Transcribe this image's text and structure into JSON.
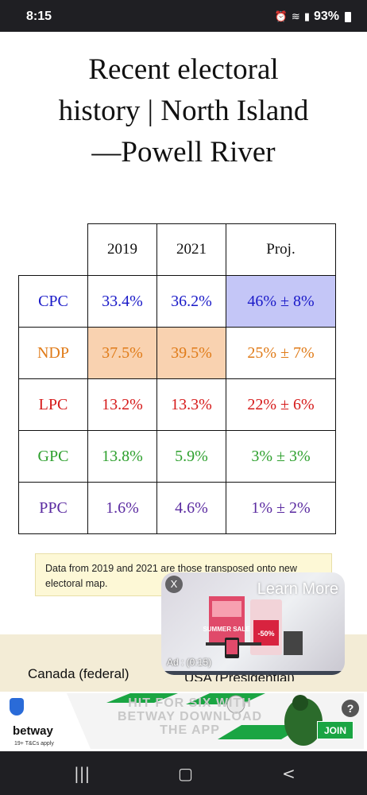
{
  "status": {
    "time": "8:15",
    "battery": "93%"
  },
  "page": {
    "title_lines": [
      "Recent electoral",
      "history | North Island",
      "—Powell River"
    ]
  },
  "table": {
    "headers": [
      "",
      "2019",
      "2021",
      "Proj."
    ],
    "rows": [
      {
        "party": "CPC",
        "color": "#1a1ac8",
        "v2019": "33.4%",
        "v2021": "36.2%",
        "proj": "46% ± 8%",
        "hl": [
          false,
          false,
          true
        ],
        "hlcolor": "#c4c6f7"
      },
      {
        "party": "NDP",
        "color": "#e07b18",
        "v2019": "37.5%",
        "v2021": "39.5%",
        "proj": "25% ± 7%",
        "hl": [
          true,
          true,
          false
        ],
        "hlcolor": "#f9d2b0"
      },
      {
        "party": "LPC",
        "color": "#d61a1a",
        "v2019": "13.2%",
        "v2021": "13.3%",
        "proj": "22% ± 6%",
        "hl": [
          false,
          false,
          false
        ]
      },
      {
        "party": "GPC",
        "color": "#2ea02e",
        "v2019": "13.8%",
        "v2021": "5.9%",
        "proj": "3% ± 3%",
        "hl": [
          false,
          false,
          false
        ]
      },
      {
        "party": "PPC",
        "color": "#5a2aa0",
        "v2019": "1.6%",
        "v2021": "4.6%",
        "proj": "1% ± 2%",
        "hl": [
          false,
          false,
          false
        ]
      }
    ]
  },
  "note": "Data from 2019 and 2021 are those transposed onto new electoral map.",
  "tabs": [
    "Canada (federal)",
    "USA (Presidential)"
  ],
  "video_ad": {
    "close": "X",
    "cta": "Learn More",
    "timer": "Ad : (0:15)"
  },
  "banner_ad": {
    "brand": "betway",
    "tcs": "19+ T&Cs apply",
    "join": "JOIN",
    "help": "?",
    "faint_text": "HIT FOR SIX WITH BETWAY DOWNLOAD THE APP"
  },
  "icons": {
    "nav": [
      "recents-icon",
      "home-icon",
      "back-icon"
    ]
  }
}
